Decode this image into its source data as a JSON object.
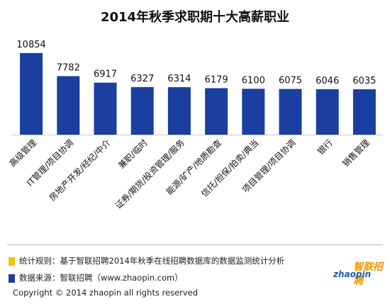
{
  "colors": {
    "bar": "#1a3fa0",
    "note_swatch_stats": "#f5c400",
    "note_swatch_source": "#1a3fa0",
    "watermark_brand": "#f39800",
    "watermark_site": "#1e5ba8"
  },
  "chart_data": {
    "type": "bar",
    "title": "2014年秋季求职期十大高薪职业",
    "xlabel": "",
    "ylabel": "",
    "ylim": [
      0,
      11500
    ],
    "grid": false,
    "categories": [
      "高级管理",
      "IT管理/项目协调",
      "房地产开发/经纪/中介",
      "兼职/临时",
      "证券/期货/投资管理/服务",
      "能源/矿产/地质勘查",
      "信托/担保/拍卖/典当",
      "项目管理/项目协调",
      "银行",
      "销售管理"
    ],
    "values": [
      10854,
      7782,
      6917,
      6327,
      6314,
      6179,
      6100,
      6075,
      6046,
      6035
    ]
  },
  "notes": {
    "stats": "统计规则：基于智联招聘2014年秋季在线招聘数据库的数据监测统计分析",
    "source": "数据来源：智联招聘（www.zhaopin.com）"
  },
  "copyright": "Copyright  ©  2014 zhaopin all rights reserved",
  "watermark": {
    "brand": "智联招聘",
    "site": "zhaopin"
  }
}
